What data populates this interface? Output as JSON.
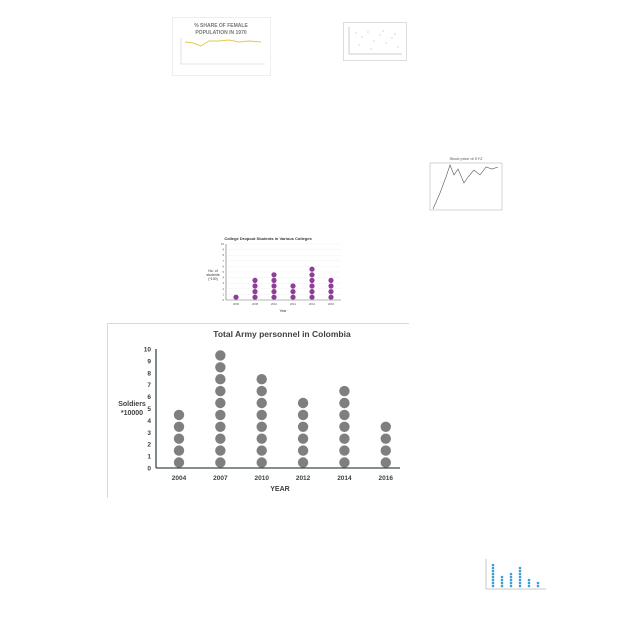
{
  "thumbnails": {
    "female_share": {
      "title_line1": "% SHARE OF FEMALE",
      "title_line2": "POPULATION IN 1970"
    },
    "stock_price": {
      "title": "Stock price of XYZ"
    },
    "college_dropout": {
      "title": "College Dropout Students in Various Colleges",
      "ylabel_line1": "No. of",
      "ylabel_line2": "students",
      "ylabel_line3": "(*100)",
      "xlabel": "Year",
      "categories": [
        "2006",
        "2008",
        "2010",
        "2012",
        "2014",
        "2016"
      ],
      "values": [
        1,
        4,
        5,
        3,
        6,
        4
      ],
      "ylim": [
        0,
        10
      ]
    }
  },
  "chart_data": {
    "type": "scatter",
    "style": "dot-plot",
    "title": "Total Army personnel in Colombia",
    "xlabel": "YEAR",
    "ylabel_line1": "Soldiers",
    "ylabel_line2": "*10000",
    "categories": [
      "2004",
      "2007",
      "2010",
      "2012",
      "2014",
      "2016"
    ],
    "values": [
      5,
      10,
      8,
      6,
      7,
      4
    ],
    "ylim": [
      0,
      10
    ],
    "yticks": [
      "0",
      "1",
      "2",
      "3",
      "4",
      "5",
      "6",
      "7",
      "8",
      "9",
      "10"
    ],
    "grid": false,
    "marker_color": "#7f7f7f",
    "axis_color": "#3b4a4a"
  }
}
